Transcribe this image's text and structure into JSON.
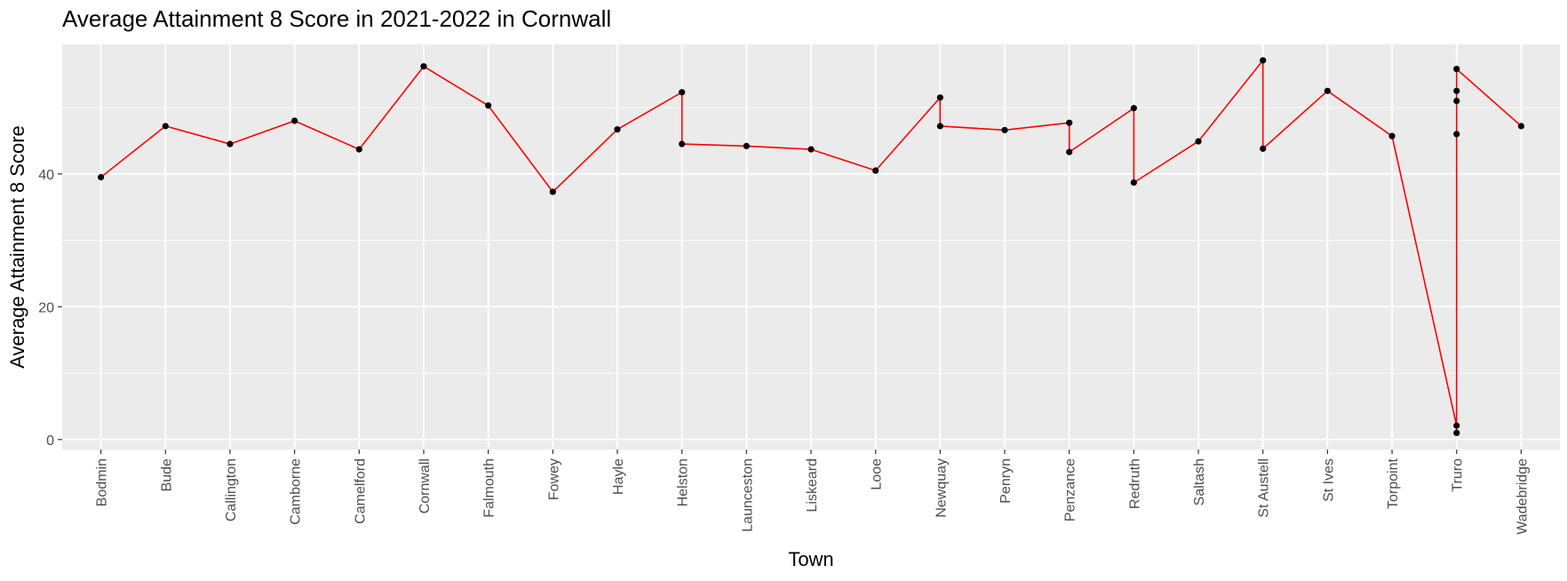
{
  "chart_data": {
    "type": "line",
    "title": "Average Attainment 8 Score in 2021-2022 in Cornwall",
    "xlabel": "Town",
    "ylabel": "Average Attainment 8 Score",
    "categories": [
      "Bodmin",
      "Bude",
      "Callington",
      "Camborne",
      "Camelford",
      "Cornwall",
      "Falmouth",
      "Fowey",
      "Hayle",
      "Helston",
      "Launceston",
      "Liskeard",
      "Looe",
      "Newquay",
      "Penryn",
      "Penzance",
      "Redruth",
      "Saltash",
      "St Austell",
      "St Ives",
      "Torpoint",
      "Truro",
      "Wadebridge"
    ],
    "yticks": [
      0,
      20,
      40
    ],
    "ylim": [
      -1.5,
      59.5
    ],
    "grid": true,
    "points": [
      {
        "x": "Bodmin",
        "y": 39.5
      },
      {
        "x": "Bude",
        "y": 47.2
      },
      {
        "x": "Callington",
        "y": 44.5
      },
      {
        "x": "Camborne",
        "y": 48.0
      },
      {
        "x": "Camelford",
        "y": 43.7
      },
      {
        "x": "Cornwall",
        "y": 56.2
      },
      {
        "x": "Falmouth",
        "y": 50.3
      },
      {
        "x": "Fowey",
        "y": 37.3
      },
      {
        "x": "Hayle",
        "y": 46.7
      },
      {
        "x": "Helston",
        "y": 52.3
      },
      {
        "x": "Helston",
        "y": 44.5
      },
      {
        "x": "Launceston",
        "y": 44.2
      },
      {
        "x": "Liskeard",
        "y": 43.7
      },
      {
        "x": "Looe",
        "y": 40.5
      },
      {
        "x": "Newquay",
        "y": 51.5
      },
      {
        "x": "Newquay",
        "y": 47.2
      },
      {
        "x": "Penryn",
        "y": 46.6
      },
      {
        "x": "Penzance",
        "y": 47.7
      },
      {
        "x": "Penzance",
        "y": 43.3
      },
      {
        "x": "Redruth",
        "y": 49.9
      },
      {
        "x": "Redruth",
        "y": 38.7
      },
      {
        "x": "Saltash",
        "y": 44.9
      },
      {
        "x": "St Austell",
        "y": 57.1
      },
      {
        "x": "St Austell",
        "y": 43.8
      },
      {
        "x": "St Ives",
        "y": 52.5
      },
      {
        "x": "Torpoint",
        "y": 45.7
      },
      {
        "x": "Truro",
        "y": 2.1
      },
      {
        "x": "Truro",
        "y": 1.0
      },
      {
        "x": "Truro",
        "y": 46.0
      },
      {
        "x": "Truro",
        "y": 51.0
      },
      {
        "x": "Truro",
        "y": 52.5
      },
      {
        "x": "Truro",
        "y": 55.8
      },
      {
        "x": "Wadebridge",
        "y": 47.2
      }
    ],
    "line_color": "#ff0000",
    "point_color": "#000000",
    "panel_background": "#ebebeb",
    "gridline_color": "#ffffff"
  }
}
